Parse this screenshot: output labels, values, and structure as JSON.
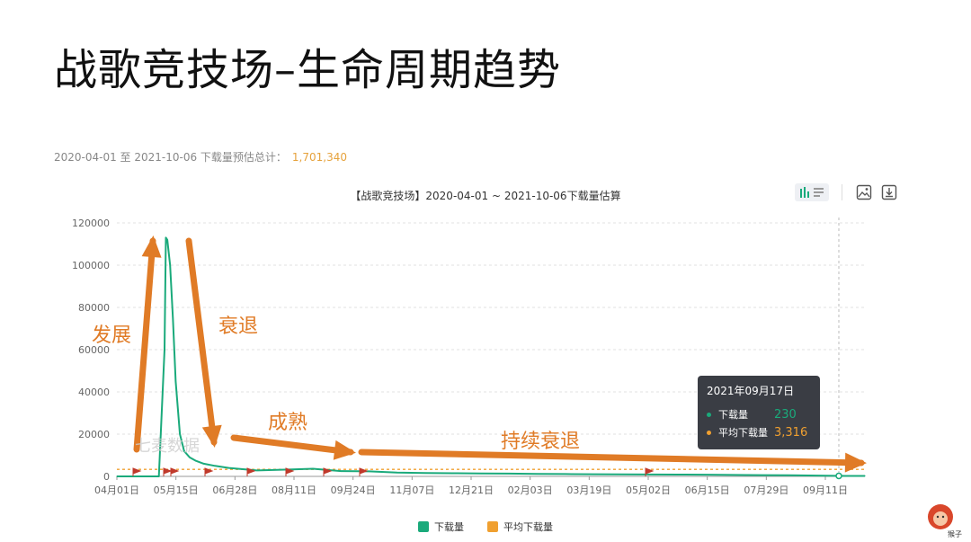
{
  "slide": {
    "title": "战歌竞技场–生命周期趋势"
  },
  "summary": {
    "text": "2020-04-01 至 2021-10-06 下载量预估总计：",
    "total": "1,701,340"
  },
  "chart_data": {
    "type": "line",
    "title": "【战歌竞技场】2020-04-01 ~ 2021-10-06下载量估算",
    "ylim": [
      0,
      120000
    ],
    "y_ticks": [
      "0",
      "20000",
      "40000",
      "60000",
      "80000",
      "100000",
      "120000"
    ],
    "x_ticks": [
      "04月01日",
      "05月15日",
      "06月28日",
      "08月11日",
      "09月24日",
      "11月07日",
      "12月21日",
      "02月03日",
      "03月19日",
      "05月02日",
      "06月15日",
      "07月29日",
      "09月11日"
    ],
    "grid": true,
    "legend_placement": "bottom",
    "series": [
      {
        "name": "下载量",
        "color": "#1aaa7b",
        "x": [
          0,
          30,
          34,
          35,
          36,
          38,
          40,
          42,
          45,
          48,
          52,
          56,
          62,
          70,
          80,
          100,
          120,
          140,
          160,
          180,
          200,
          220,
          240,
          260,
          280,
          300,
          320,
          340,
          360,
          380,
          400,
          420,
          440,
          460,
          480,
          500,
          520,
          534
        ],
        "y": [
          0,
          0,
          60000,
          113000,
          112000,
          100000,
          75000,
          45000,
          20000,
          12000,
          9000,
          7500,
          6000,
          5000,
          4000,
          2800,
          3200,
          3600,
          2500,
          2400,
          1800,
          1600,
          1500,
          1400,
          1300,
          1200,
          1100,
          1000,
          950,
          900,
          850,
          800,
          700,
          600,
          500,
          400,
          230,
          230
        ]
      },
      {
        "name": "平均下载量",
        "color": "#f0a030",
        "constant": 3316,
        "style": "dashed"
      }
    ],
    "tooltip": {
      "date": "2021年09月17日",
      "label_download": "下载量",
      "value_download": "230",
      "label_avg": "平均下载量",
      "value_avg": "3,316"
    },
    "annotations": [
      "发展",
      "衰退",
      "成熟",
      "持续衰退"
    ]
  },
  "watermark": "七麦数据",
  "logo_caption": "猴子"
}
